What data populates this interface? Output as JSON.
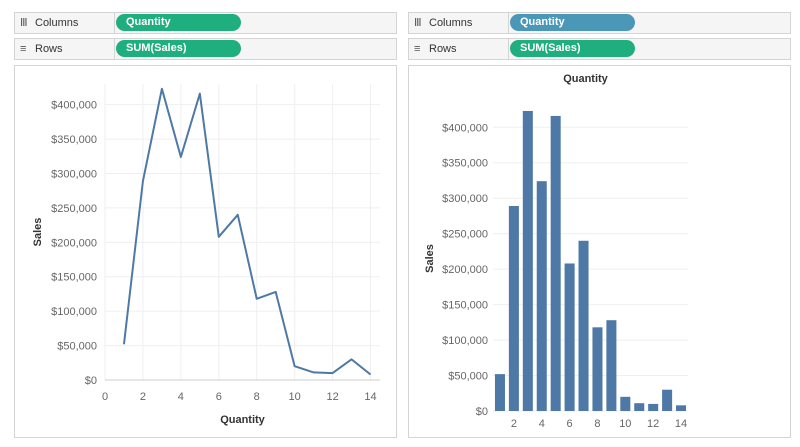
{
  "left": {
    "columns_label": "Columns",
    "columns_icon": "columns-icon",
    "columns_pill": "Quantity",
    "columns_pill_color": "#1fae7e",
    "rows_label": "Rows",
    "rows_icon": "rows-icon",
    "rows_pill": "SUM(Sales)",
    "rows_pill_color": "#1fae7e"
  },
  "right": {
    "columns_label": "Columns",
    "columns_icon": "columns-icon",
    "columns_pill": "Quantity",
    "columns_pill_color": "#4b97b8",
    "rows_label": "Rows",
    "rows_icon": "rows-icon",
    "rows_pill": "SUM(Sales)",
    "rows_pill_color": "#1fae7e"
  },
  "colors": {
    "mark": "#4e79a7",
    "grid": "#efefef",
    "axis": "#cccccc"
  },
  "chart_data": [
    {
      "type": "line",
      "title": "",
      "xlabel": "Quantity",
      "ylabel": "Sales",
      "x": [
        1,
        2,
        3,
        4,
        5,
        6,
        7,
        8,
        9,
        10,
        11,
        12,
        13,
        14
      ],
      "values": [
        52000,
        289000,
        423000,
        324000,
        416000,
        208000,
        240000,
        118000,
        128000,
        20000,
        11000,
        10000,
        30000,
        8000
      ],
      "xticks": [
        "0",
        "2",
        "4",
        "6",
        "8",
        "10",
        "12",
        "14"
      ],
      "yticks": [
        "$0",
        "$50,000",
        "$100,000",
        "$150,000",
        "$200,000",
        "$250,000",
        "$300,000",
        "$350,000",
        "$400,000"
      ],
      "xlim": [
        0,
        14.5
      ],
      "ylim": [
        0,
        430000
      ],
      "grid": true
    },
    {
      "type": "bar",
      "title": "Quantity",
      "xlabel": "",
      "ylabel": "Sales",
      "categories": [
        "1",
        "2",
        "3",
        "4",
        "5",
        "6",
        "7",
        "8",
        "9",
        "10",
        "11",
        "12",
        "13",
        "14"
      ],
      "values": [
        52000,
        289000,
        423000,
        324000,
        416000,
        208000,
        240000,
        118000,
        128000,
        20000,
        11000,
        10000,
        30000,
        8000
      ],
      "xticks": [
        "2",
        "4",
        "6",
        "8",
        "10",
        "12",
        "14"
      ],
      "yticks": [
        "$0",
        "$50,000",
        "$100,000",
        "$150,000",
        "$200,000",
        "$250,000",
        "$300,000",
        "$350,000",
        "$400,000"
      ],
      "ylim": [
        0,
        430000
      ],
      "grid": true
    }
  ]
}
